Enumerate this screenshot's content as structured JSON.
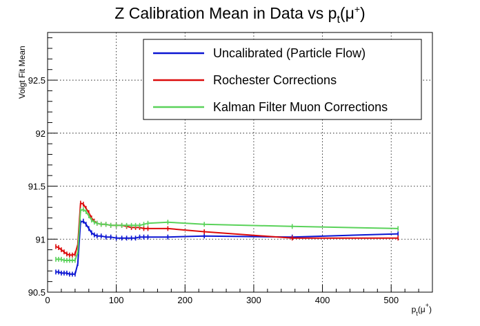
{
  "chart_data": {
    "type": "line",
    "title_main": "Z Calibration Mean in Data vs p",
    "title_sub": "t",
    "title_tail": "(μ",
    "title_sup": "+",
    "title_close": ")",
    "xlabel_main": "p",
    "xlabel_sub": "t",
    "xlabel_tail": "(μ",
    "xlabel_sup": "+",
    "xlabel_close": ")",
    "ylabel": "Voigt Fit Mean",
    "xlim": [
      0,
      560
    ],
    "ylim": [
      90.5,
      92.95
    ],
    "x_ticks": [
      0,
      100,
      200,
      300,
      400,
      500
    ],
    "y_ticks": [
      90.5,
      91,
      91.5,
      92,
      92.5
    ],
    "y_tick_labels": [
      "90.5",
      "91",
      "91.5",
      "92",
      "92.5"
    ],
    "grid": true,
    "legend_position": "top-right",
    "series": [
      {
        "name": "Uncalibrated (Particle Flow)",
        "color": "#0a14d2",
        "points": [
          [
            12,
            90.69
          ],
          [
            16,
            90.69
          ],
          [
            20,
            90.68
          ],
          [
            24,
            90.68
          ],
          [
            28,
            90.68
          ],
          [
            32,
            90.67
          ],
          [
            36,
            90.67
          ],
          [
            40,
            90.67
          ],
          [
            44,
            90.77
          ],
          [
            48,
            91.16
          ],
          [
            52,
            91.17
          ],
          [
            56,
            91.14
          ],
          [
            60,
            91.1
          ],
          [
            64,
            91.06
          ],
          [
            68,
            91.04
          ],
          [
            72,
            91.03
          ],
          [
            78,
            91.03
          ],
          [
            85,
            91.02
          ],
          [
            92,
            91.02
          ],
          [
            100,
            91.01
          ],
          [
            108,
            91.01
          ],
          [
            115,
            91.01
          ],
          [
            122,
            91.01
          ],
          [
            128,
            91.01
          ],
          [
            134,
            91.02
          ],
          [
            140,
            91.02
          ],
          [
            146,
            91.02
          ],
          [
            175,
            91.02
          ],
          [
            228,
            91.03
          ],
          [
            356,
            91.02
          ],
          [
            510,
            91.05
          ]
        ]
      },
      {
        "name": "Rochester Corrections",
        "color": "#dc0a0a",
        "points": [
          [
            12,
            90.93
          ],
          [
            16,
            90.92
          ],
          [
            20,
            90.9
          ],
          [
            24,
            90.88
          ],
          [
            28,
            90.86
          ],
          [
            32,
            90.85
          ],
          [
            36,
            90.85
          ],
          [
            40,
            90.86
          ],
          [
            44,
            90.95
          ],
          [
            48,
            91.34
          ],
          [
            52,
            91.33
          ],
          [
            56,
            91.29
          ],
          [
            60,
            91.25
          ],
          [
            64,
            91.2
          ],
          [
            68,
            91.17
          ],
          [
            72,
            91.15
          ],
          [
            78,
            91.14
          ],
          [
            85,
            91.14
          ],
          [
            92,
            91.13
          ],
          [
            100,
            91.13
          ],
          [
            108,
            91.13
          ],
          [
            115,
            91.12
          ],
          [
            122,
            91.11
          ],
          [
            128,
            91.11
          ],
          [
            134,
            91.11
          ],
          [
            140,
            91.1
          ],
          [
            146,
            91.1
          ],
          [
            175,
            91.1
          ],
          [
            228,
            91.07
          ],
          [
            356,
            91.01
          ],
          [
            510,
            91.01
          ]
        ]
      },
      {
        "name": "Kalman Filter Muon Corrections",
        "color": "#5ad25a",
        "points": [
          [
            12,
            90.81
          ],
          [
            16,
            90.81
          ],
          [
            20,
            90.81
          ],
          [
            24,
            90.8
          ],
          [
            28,
            90.8
          ],
          [
            32,
            90.8
          ],
          [
            36,
            90.8
          ],
          [
            40,
            90.8
          ],
          [
            44,
            90.88
          ],
          [
            48,
            91.27
          ],
          [
            52,
            91.28
          ],
          [
            56,
            91.26
          ],
          [
            60,
            91.22
          ],
          [
            64,
            91.18
          ],
          [
            68,
            91.16
          ],
          [
            72,
            91.15
          ],
          [
            78,
            91.14
          ],
          [
            85,
            91.14
          ],
          [
            92,
            91.13
          ],
          [
            100,
            91.13
          ],
          [
            108,
            91.13
          ],
          [
            115,
            91.13
          ],
          [
            122,
            91.13
          ],
          [
            128,
            91.13
          ],
          [
            134,
            91.13
          ],
          [
            140,
            91.14
          ],
          [
            146,
            91.15
          ],
          [
            175,
            91.16
          ],
          [
            228,
            91.14
          ],
          [
            356,
            91.12
          ],
          [
            510,
            91.1
          ]
        ]
      }
    ]
  }
}
